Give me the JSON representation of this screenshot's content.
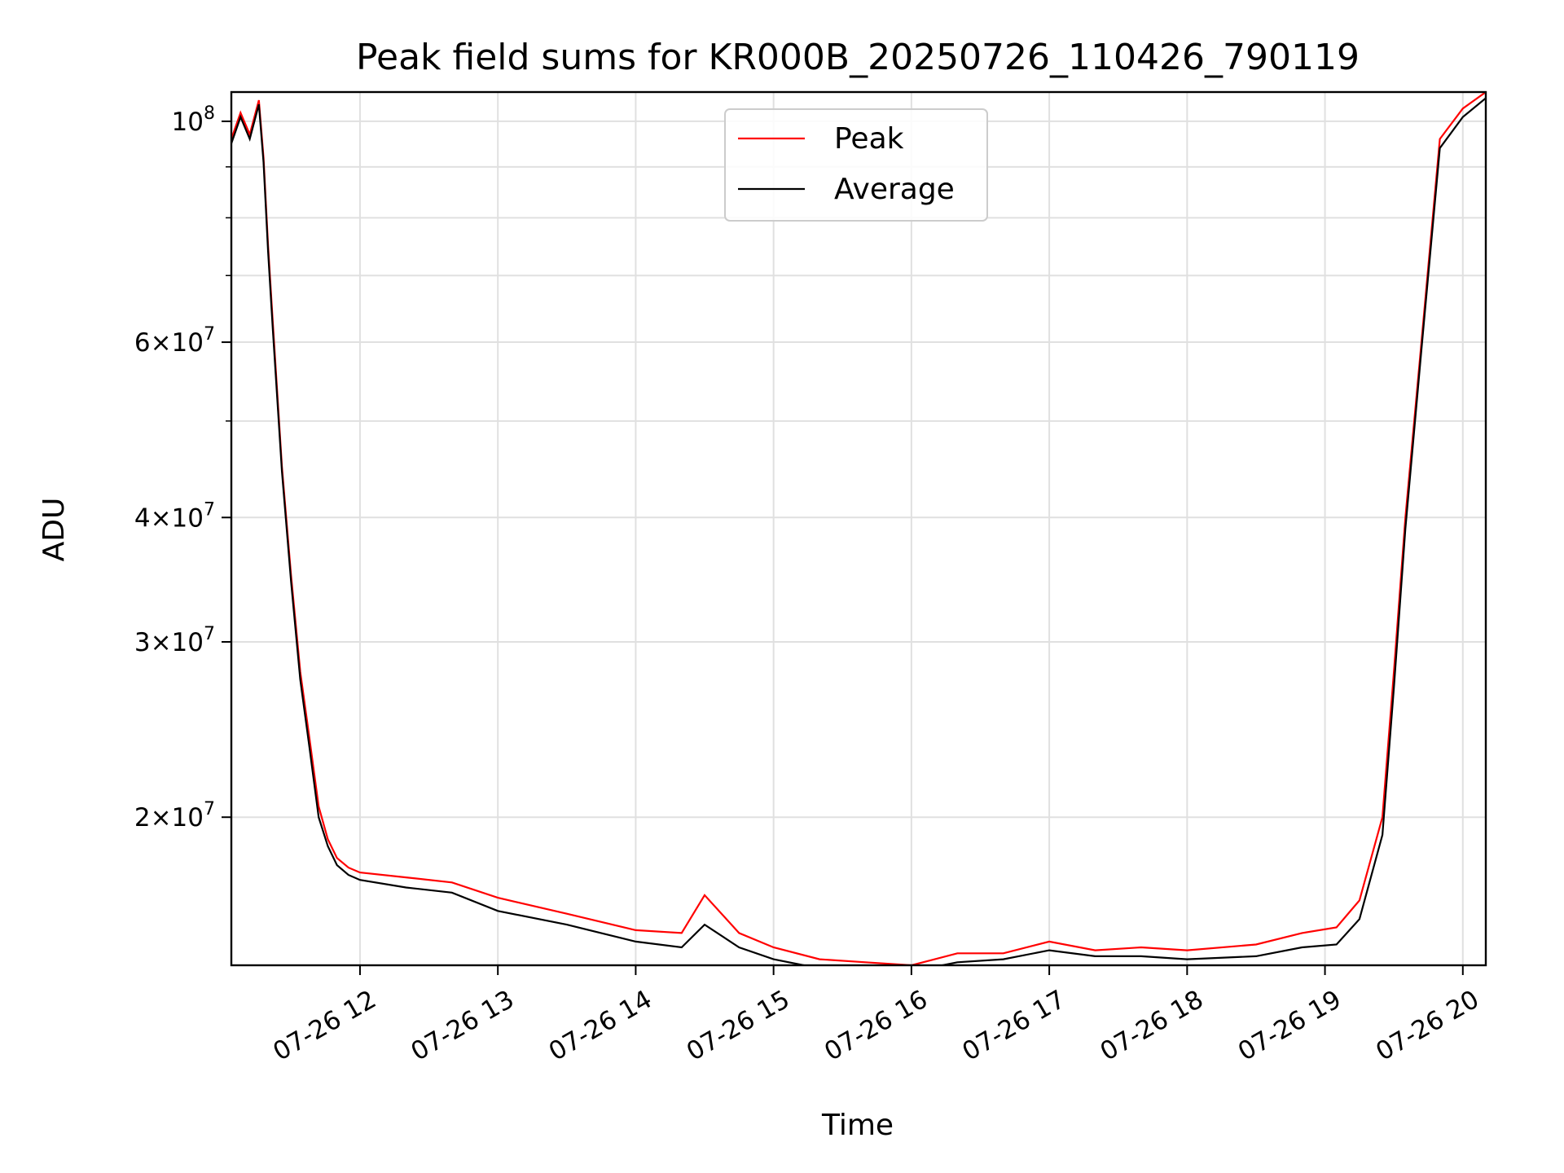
{
  "chart_data": {
    "type": "line",
    "title": "Peak field sums for KR000B_20250726_110426_790119",
    "xlabel": "Time",
    "ylabel": "ADU",
    "x_scale": "time",
    "y_scale": "log",
    "xlim": [
      "2025-07-26 11:04",
      "2025-07-26 20:10"
    ],
    "ylim": [
      14200000,
      107000000
    ],
    "grid": true,
    "legend_position": "upper center",
    "x_ticks": [
      "07-26 12",
      "07-26 13",
      "07-26 14",
      "07-26 15",
      "07-26 16",
      "07-26 17",
      "07-26 18",
      "07-26 19",
      "07-26 20"
    ],
    "x_tick_times": [
      "2025-07-26 12:00",
      "2025-07-26 13:00",
      "2025-07-26 14:00",
      "2025-07-26 15:00",
      "2025-07-26 16:00",
      "2025-07-26 17:00",
      "2025-07-26 18:00",
      "2025-07-26 19:00",
      "2025-07-26 20:00"
    ],
    "y_ticks_major": [
      {
        "value": 100000000,
        "mant": "",
        "exp": "8"
      },
      {
        "value": 60000000,
        "mant": "6",
        "exp": "7"
      },
      {
        "value": 40000000,
        "mant": "4",
        "exp": "7"
      },
      {
        "value": 30000000,
        "mant": "3",
        "exp": "7"
      },
      {
        "value": 20000000,
        "mant": "2",
        "exp": "7"
      }
    ],
    "y_grid_values": [
      100000000,
      90000000,
      80000000,
      70000000,
      60000000,
      50000000,
      40000000,
      30000000,
      20000000
    ],
    "series": [
      {
        "name": "Peak",
        "color": "#ff0000",
        "x": [
          "2025-07-26 11:04",
          "2025-07-26 11:08",
          "2025-07-26 11:12",
          "2025-07-26 11:16",
          "2025-07-26 11:18",
          "2025-07-26 11:20",
          "2025-07-26 11:22",
          "2025-07-26 11:26",
          "2025-07-26 11:30",
          "2025-07-26 11:34",
          "2025-07-26 11:38",
          "2025-07-26 11:42",
          "2025-07-26 11:46",
          "2025-07-26 11:50",
          "2025-07-26 11:55",
          "2025-07-26 12:00",
          "2025-07-26 12:20",
          "2025-07-26 12:40",
          "2025-07-26 13:00",
          "2025-07-26 13:30",
          "2025-07-26 14:00",
          "2025-07-26 14:20",
          "2025-07-26 14:30",
          "2025-07-26 14:45",
          "2025-07-26 15:00",
          "2025-07-26 15:20",
          "2025-07-26 15:40",
          "2025-07-26 16:00",
          "2025-07-26 16:20",
          "2025-07-26 16:40",
          "2025-07-26 17:00",
          "2025-07-26 17:20",
          "2025-07-26 17:40",
          "2025-07-26 18:00",
          "2025-07-26 18:30",
          "2025-07-26 18:50",
          "2025-07-26 19:05",
          "2025-07-26 19:15",
          "2025-07-26 19:25",
          "2025-07-26 19:30",
          "2025-07-26 19:35",
          "2025-07-26 19:42",
          "2025-07-26 19:50",
          "2025-07-26 20:00",
          "2025-07-26 20:10"
        ],
        "values": [
          96000000,
          102000000,
          97000000,
          105000000,
          92000000,
          75000000,
          63000000,
          45000000,
          35000000,
          28000000,
          24000000,
          20500000,
          19000000,
          18200000,
          17800000,
          17600000,
          17400000,
          17200000,
          16600000,
          16000000,
          15400000,
          15300000,
          16700000,
          15300000,
          14800000,
          14400000,
          14300000,
          14200000,
          14600000,
          14600000,
          15000000,
          14700000,
          14800000,
          14700000,
          14900000,
          15300000,
          15500000,
          16500000,
          20000000,
          28000000,
          40000000,
          60000000,
          96000000,
          103000000,
          107000000
        ]
      },
      {
        "name": "Average",
        "color": "#000000",
        "x": [
          "2025-07-26 11:04",
          "2025-07-26 11:08",
          "2025-07-26 11:12",
          "2025-07-26 11:16",
          "2025-07-26 11:18",
          "2025-07-26 11:20",
          "2025-07-26 11:22",
          "2025-07-26 11:26",
          "2025-07-26 11:30",
          "2025-07-26 11:34",
          "2025-07-26 11:38",
          "2025-07-26 11:42",
          "2025-07-26 11:46",
          "2025-07-26 11:50",
          "2025-07-26 11:55",
          "2025-07-26 12:00",
          "2025-07-26 12:20",
          "2025-07-26 12:40",
          "2025-07-26 13:00",
          "2025-07-26 13:30",
          "2025-07-26 14:00",
          "2025-07-26 14:20",
          "2025-07-26 14:30",
          "2025-07-26 14:45",
          "2025-07-26 15:00",
          "2025-07-26 15:20",
          "2025-07-26 15:40",
          "2025-07-26 16:00",
          "2025-07-26 16:20",
          "2025-07-26 16:40",
          "2025-07-26 17:00",
          "2025-07-26 17:20",
          "2025-07-26 17:40",
          "2025-07-26 18:00",
          "2025-07-26 18:30",
          "2025-07-26 18:50",
          "2025-07-26 19:05",
          "2025-07-26 19:15",
          "2025-07-26 19:25",
          "2025-07-26 19:30",
          "2025-07-26 19:35",
          "2025-07-26 19:42",
          "2025-07-26 19:50",
          "2025-07-26 20:00",
          "2025-07-26 20:10"
        ],
        "values": [
          95000000,
          101000000,
          96000000,
          104000000,
          91000000,
          74000000,
          62000000,
          44500000,
          34500000,
          27500000,
          23500000,
          20000000,
          18700000,
          17900000,
          17500000,
          17300000,
          17000000,
          16800000,
          16100000,
          15600000,
          15000000,
          14800000,
          15600000,
          14800000,
          14400000,
          14100000,
          14000000,
          14000000,
          14300000,
          14400000,
          14700000,
          14500000,
          14500000,
          14400000,
          14500000,
          14800000,
          14900000,
          15800000,
          19200000,
          27000000,
          39000000,
          59000000,
          94000000,
          101000000,
          105500000
        ]
      }
    ]
  }
}
